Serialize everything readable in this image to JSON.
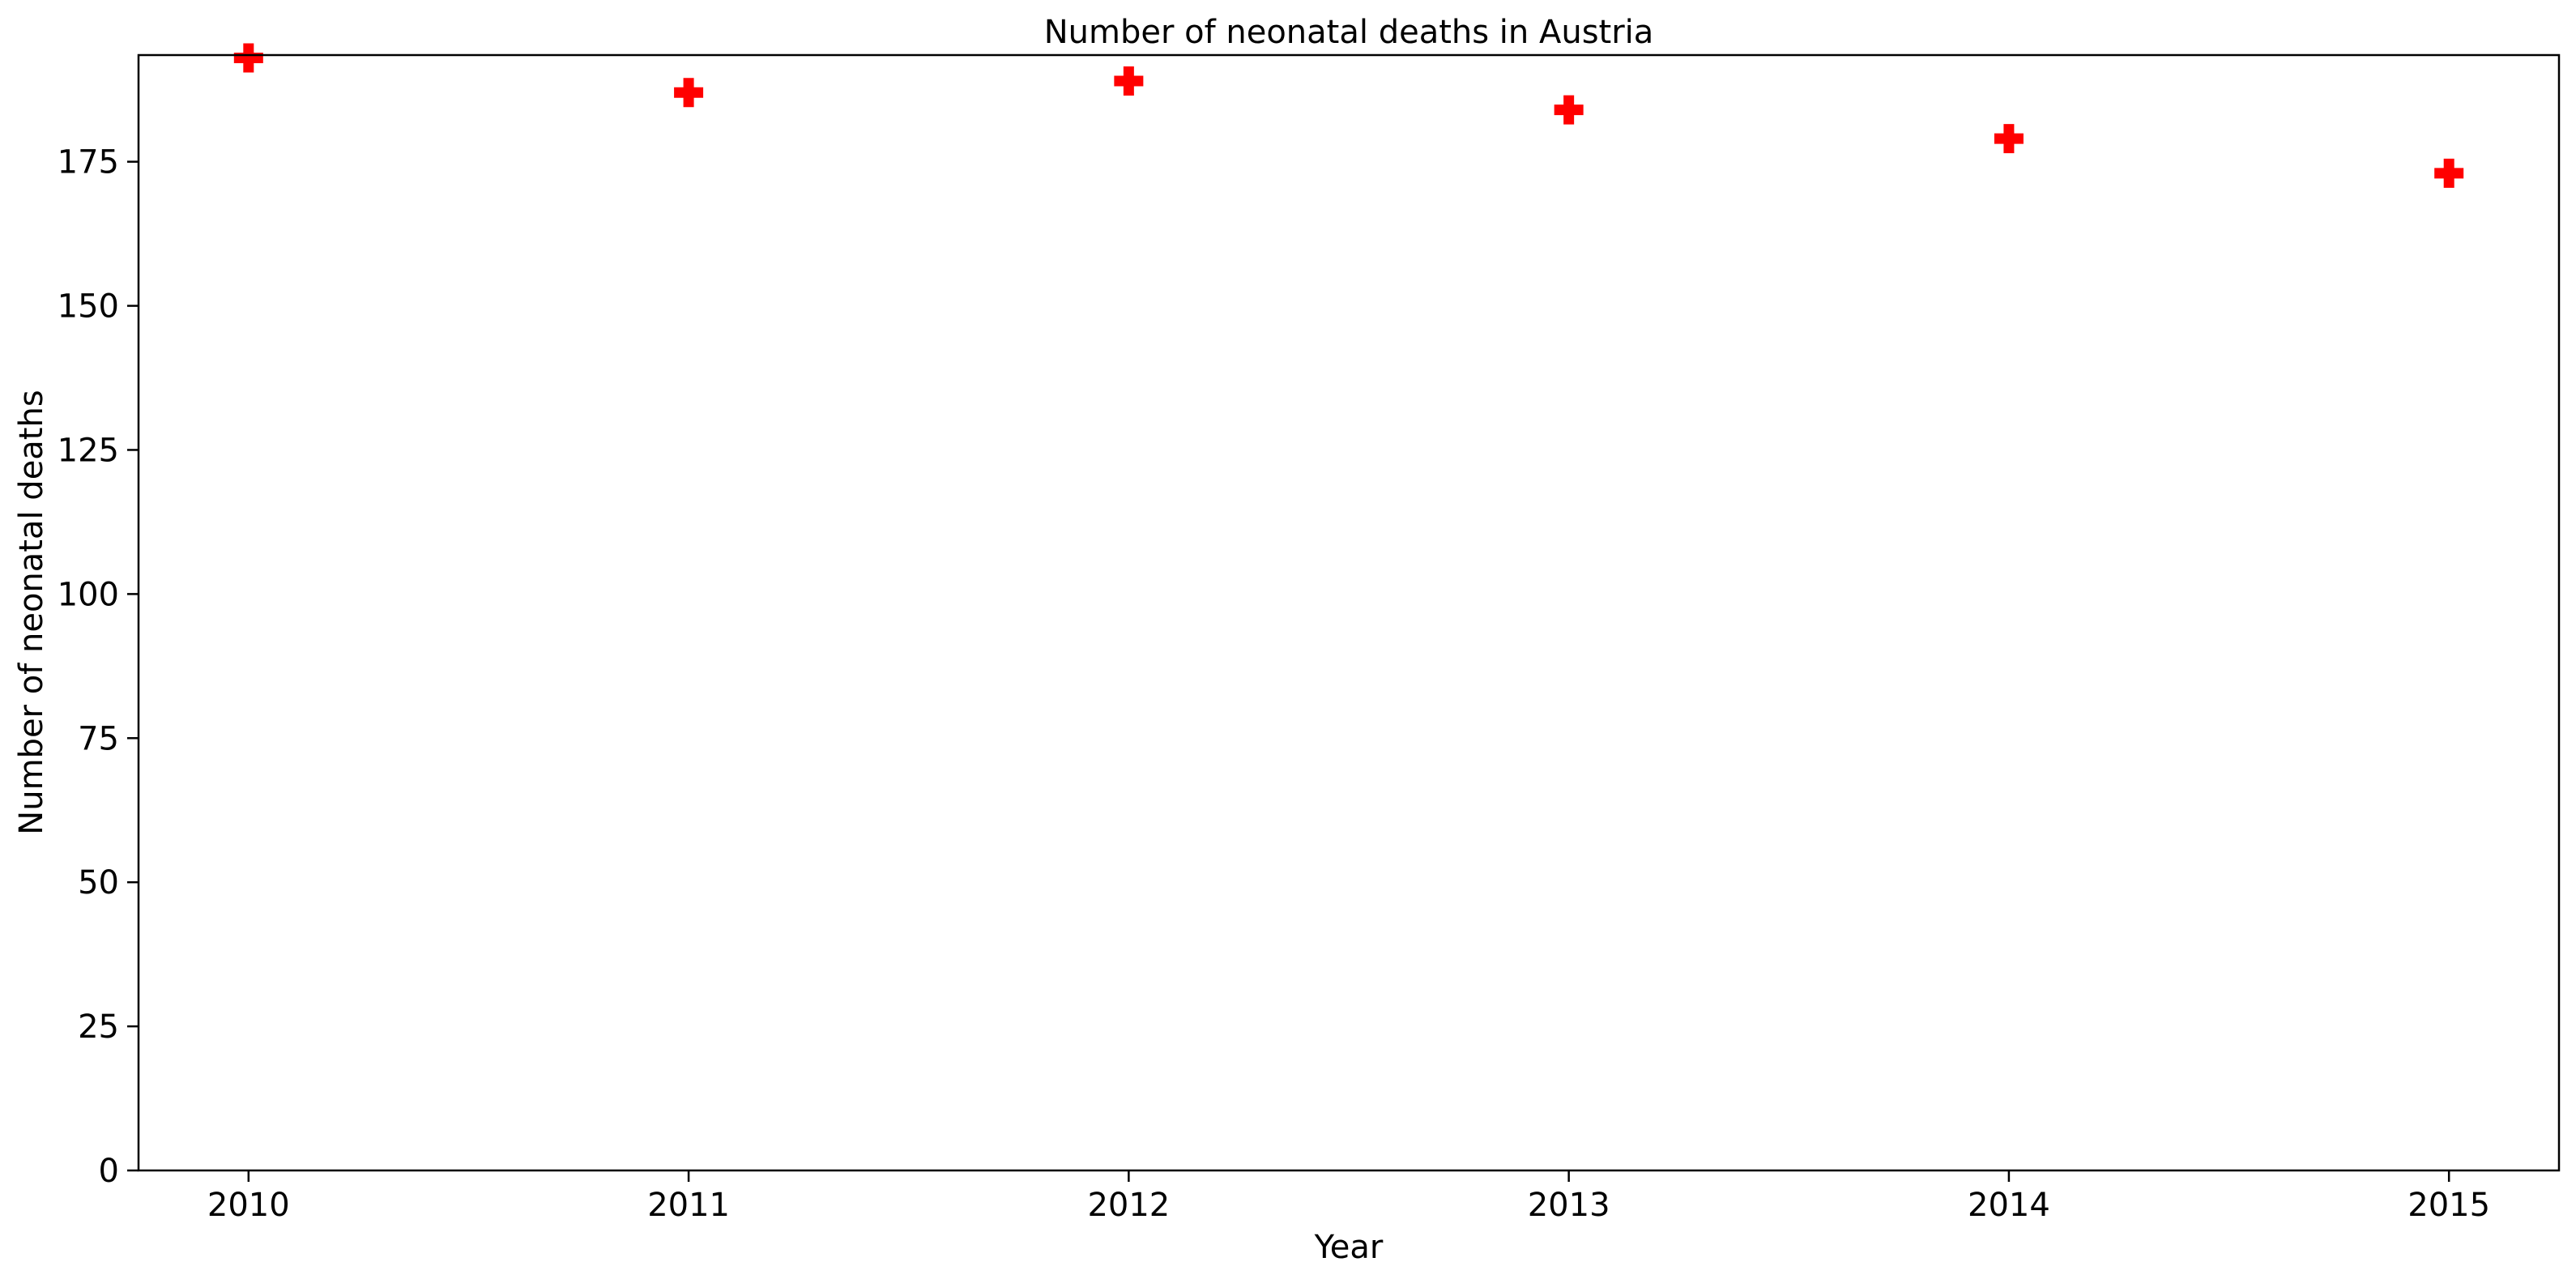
{
  "chart_data": {
    "type": "scatter",
    "title": "Number of neonatal deaths in Austria",
    "xlabel": "Year",
    "ylabel": "Number of neonatal deaths",
    "x": [
      2010,
      2011,
      2012,
      2013,
      2014,
      2015
    ],
    "y": [
      193,
      187,
      189,
      184,
      179,
      173
    ],
    "xticks": [
      "2010",
      "2011",
      "2012",
      "2013",
      "2014",
      "2015"
    ],
    "yticks": [
      0,
      25,
      50,
      75,
      100,
      125,
      150,
      175
    ],
    "xlim": [
      2009.75,
      2015.25
    ],
    "ylim": [
      0,
      193.5
    ],
    "marker": "plus-filled",
    "marker_color": "#ff0000",
    "grid": false,
    "legend": "none"
  }
}
